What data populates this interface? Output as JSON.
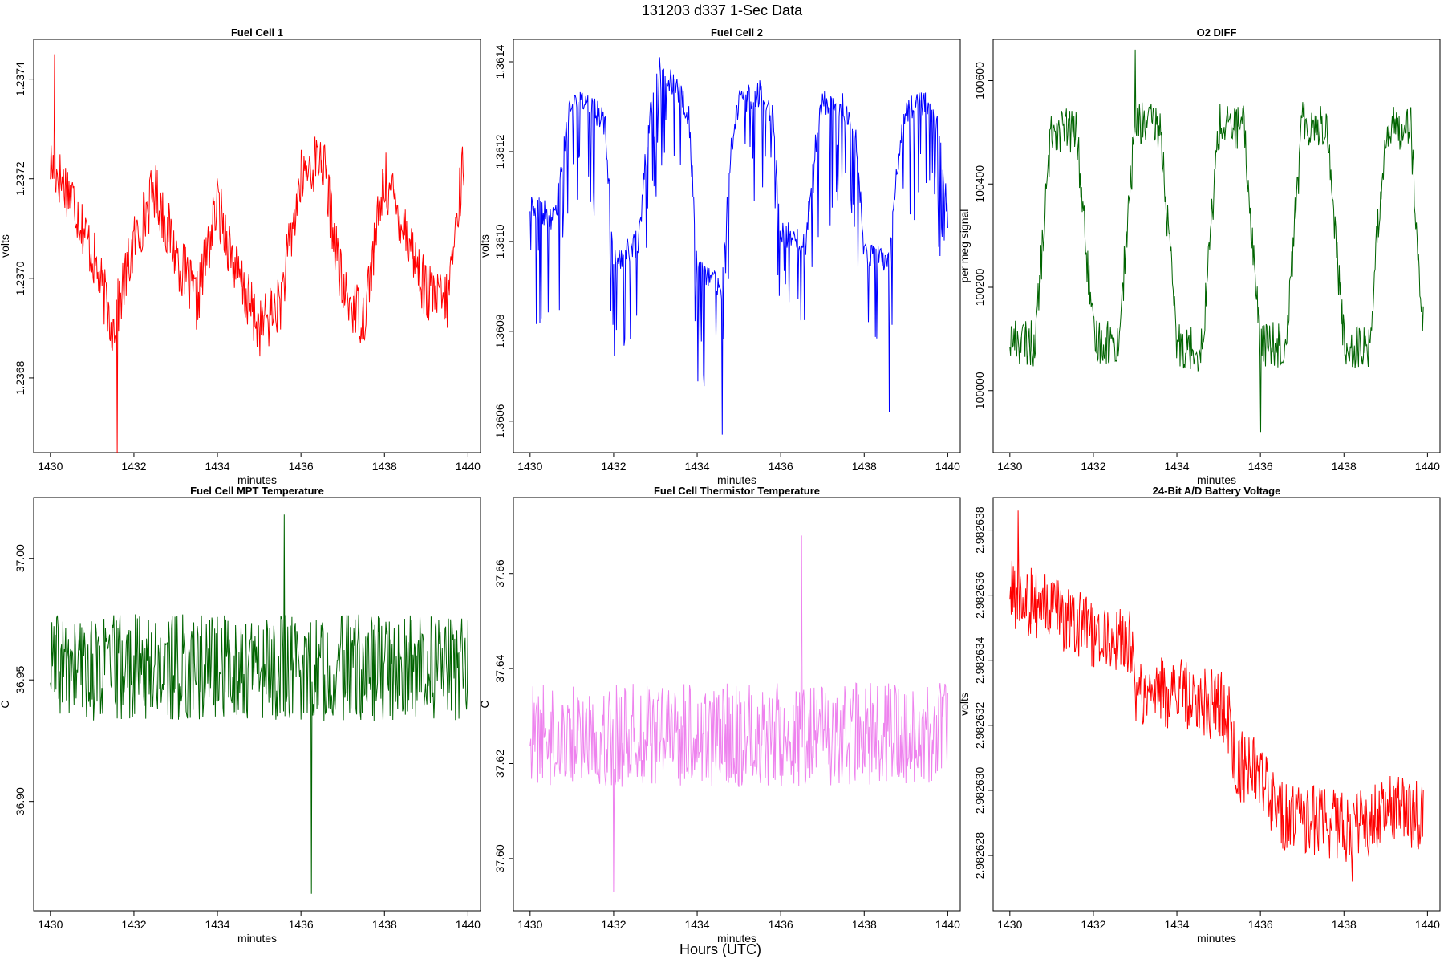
{
  "figure": {
    "title": "131203   d337   1-Sec Data",
    "xlabel": "Hours (UTC)"
  },
  "chart_data": [
    {
      "type": "line",
      "title": "Fuel Cell 1",
      "xlabel": "minutes",
      "ylabel": "volts",
      "color": "#ff0000",
      "xlim": [
        1429.6,
        1440.3
      ],
      "ylim": [
        1.23665,
        1.23748
      ],
      "xticks": [
        1430,
        1432,
        1434,
        1436,
        1438,
        1440
      ],
      "xtick_labels": [
        "1430",
        "1432",
        "1434",
        "1436",
        "1438",
        "1440"
      ],
      "yticks": [
        1.2368,
        1.237,
        1.2372,
        1.2374
      ],
      "ytick_labels": [
        "1.2368",
        "1.2370",
        "1.2372",
        "1.2374"
      ],
      "x": [
        1430.0,
        1430.5,
        1431.0,
        1431.5,
        1432.0,
        1432.5,
        1433.0,
        1433.5,
        1434.0,
        1434.5,
        1435.0,
        1435.5,
        1436.0,
        1436.5,
        1437.0,
        1437.5,
        1438.0,
        1438.5,
        1439.0,
        1439.5,
        1439.9
      ],
      "y": [
        1.23723,
        1.23717,
        1.23705,
        1.2369,
        1.23707,
        1.23718,
        1.23705,
        1.23695,
        1.23715,
        1.237,
        1.2369,
        1.23695,
        1.2372,
        1.23725,
        1.23697,
        1.23692,
        1.2372,
        1.2371,
        1.23697,
        1.23695,
        1.23724
      ],
      "noise": 6e-05,
      "minima": [
        [
          1431.6,
          1.23665
        ]
      ],
      "maxima": [
        [
          1430.1,
          1.23745
        ]
      ]
    },
    {
      "type": "line",
      "title": "Fuel Cell 2",
      "xlabel": "minutes",
      "ylabel": "volts",
      "color": "#0000ff",
      "xlim": [
        1429.6,
        1440.3
      ],
      "ylim": [
        1.36053,
        1.36145
      ],
      "xticks": [
        1430,
        1432,
        1434,
        1436,
        1438,
        1440
      ],
      "xtick_labels": [
        "1430",
        "1432",
        "1434",
        "1436",
        "1438",
        "1440"
      ],
      "yticks": [
        1.3606,
        1.3608,
        1.361,
        1.3612,
        1.3614
      ],
      "ytick_labels": [
        "1.3606",
        "1.3608",
        "1.3610",
        "1.3612",
        "1.3614"
      ],
      "x": [
        1430.0,
        1430.6,
        1430.8,
        1431.0,
        1431.5,
        1431.8,
        1432.0,
        1432.6,
        1432.8,
        1433.0,
        1433.5,
        1433.8,
        1434.0,
        1434.6,
        1434.8,
        1435.0,
        1435.5,
        1435.8,
        1436.0,
        1436.6,
        1436.8,
        1437.0,
        1437.5,
        1437.8,
        1438.0,
        1438.6,
        1438.8,
        1439.0,
        1439.5,
        1439.8,
        1440.0
      ],
      "y": [
        1.36108,
        1.36105,
        1.3612,
        1.36132,
        1.3613,
        1.36126,
        1.36095,
        1.361,
        1.36122,
        1.36137,
        1.36135,
        1.36128,
        1.36095,
        1.3609,
        1.3612,
        1.36131,
        1.36133,
        1.36128,
        1.36102,
        1.361,
        1.3612,
        1.36131,
        1.3613,
        1.36123,
        1.36098,
        1.36095,
        1.36118,
        1.36129,
        1.36131,
        1.36125,
        1.36105
      ],
      "noise": 3e-05,
      "dips": 0.00025,
      "minima": [
        [
          1434.6,
          1.36057
        ],
        [
          1438.6,
          1.36062
        ]
      ],
      "maxima": [
        [
          1433.1,
          1.36141
        ]
      ]
    },
    {
      "type": "line",
      "title": "O2 DIFF",
      "xlabel": "minutes",
      "ylabel": "per meg signal",
      "color": "#006400",
      "xlim": [
        1429.6,
        1440.3
      ],
      "ylim": [
        99880,
        100680
      ],
      "xticks": [
        1430,
        1432,
        1434,
        1436,
        1438,
        1440
      ],
      "xtick_labels": [
        "1430",
        "1432",
        "1434",
        "1436",
        "1438",
        "1440"
      ],
      "yticks": [
        100000,
        100200,
        100400,
        100600
      ],
      "ytick_labels": [
        "100000",
        "100200",
        "100400",
        "100600"
      ],
      "x": [
        1430.0,
        1430.6,
        1430.8,
        1431.0,
        1431.6,
        1431.8,
        1432.0,
        1432.6,
        1432.8,
        1433.0,
        1433.6,
        1433.8,
        1434.0,
        1434.6,
        1434.8,
        1435.0,
        1435.6,
        1435.8,
        1436.0,
        1436.6,
        1436.8,
        1437.0,
        1437.6,
        1437.8,
        1438.0,
        1438.6,
        1438.8,
        1439.0,
        1439.6,
        1439.8,
        1439.9
      ],
      "y": [
        100100,
        100090,
        100300,
        100510,
        100500,
        100300,
        100100,
        100090,
        100300,
        100520,
        100510,
        100300,
        100090,
        100080,
        100300,
        100510,
        100510,
        100300,
        100090,
        100090,
        100300,
        100520,
        100510,
        100300,
        100090,
        100080,
        100300,
        100500,
        100520,
        100200,
        100120
      ],
      "noise": 45,
      "minima": [
        [
          1436.0,
          99920
        ]
      ],
      "maxima": [
        [
          1433.0,
          100660
        ]
      ]
    },
    {
      "type": "line",
      "title": "Fuel Cell MPT Temperature",
      "xlabel": "minutes",
      "ylabel": "C",
      "color": "#006400",
      "xlim": [
        1429.6,
        1440.3
      ],
      "ylim": [
        36.855,
        37.025
      ],
      "xticks": [
        1430,
        1432,
        1434,
        1436,
        1438,
        1440
      ],
      "xtick_labels": [
        "1430",
        "1432",
        "1434",
        "1436",
        "1438",
        "1440"
      ],
      "yticks": [
        36.9,
        36.95,
        37.0
      ],
      "ytick_labels": [
        "36.90",
        "36.95",
        "37.00"
      ],
      "x": [
        1430.0,
        1440.0
      ],
      "y": [
        36.955,
        36.955
      ],
      "noise": 0.022,
      "minima": [
        [
          1436.25,
          36.862
        ]
      ],
      "maxima": [
        [
          1435.6,
          37.018
        ]
      ]
    },
    {
      "type": "line",
      "title": "Fuel Cell Thermistor Temperature",
      "xlabel": "minutes",
      "ylabel": "C",
      "color": "#ee82ee",
      "xlim": [
        1429.6,
        1440.3
      ],
      "ylim": [
        37.589,
        37.676
      ],
      "xticks": [
        1430,
        1432,
        1434,
        1436,
        1438,
        1440
      ],
      "xtick_labels": [
        "1430",
        "1432",
        "1434",
        "1436",
        "1438",
        "1440"
      ],
      "yticks": [
        37.6,
        37.62,
        37.64,
        37.66
      ],
      "ytick_labels": [
        "37.60",
        "37.62",
        "37.64",
        "37.66"
      ],
      "x": [
        1430.0,
        1440.0
      ],
      "y": [
        37.626,
        37.626
      ],
      "noise": 0.011,
      "minima": [
        [
          1432.0,
          37.593
        ]
      ],
      "maxima": [
        [
          1436.5,
          37.668
        ]
      ]
    },
    {
      "type": "line",
      "title": "24-Bit A/D Battery Voltage",
      "xlabel": "minutes",
      "ylabel": "volts",
      "color": "#ff0000",
      "xlim": [
        1429.6,
        1440.3
      ],
      "ylim": [
        2.9826263,
        2.982639
      ],
      "xticks": [
        1430,
        1432,
        1434,
        1436,
        1438,
        1440
      ],
      "xtick_labels": [
        "1430",
        "1432",
        "1434",
        "1436",
        "1438",
        "1440"
      ],
      "yticks": [
        2.982628,
        2.98263,
        2.982632,
        2.982634,
        2.982636,
        2.982638
      ],
      "ytick_labels": [
        "2.982628",
        "2.982630",
        "2.982632",
        "2.982634",
        "2.982636",
        "2.982638"
      ],
      "x": [
        1430.0,
        1431.0,
        1432.0,
        1432.9,
        1433.0,
        1434.0,
        1435.2,
        1435.4,
        1436.0,
        1436.5,
        1437.0,
        1438.0,
        1438.5,
        1439.0,
        1439.9
      ],
      "y": [
        2.982636,
        2.9826355,
        2.9826348,
        2.9826345,
        2.982633,
        2.982633,
        2.9826325,
        2.9826308,
        2.9826305,
        2.9826292,
        2.9826291,
        2.9826289,
        2.9826289,
        2.9826296,
        2.9826292
      ],
      "noise": 1.1e-06,
      "minima": [
        [
          1438.2,
          2.9826272
        ]
      ],
      "maxima": [
        [
          1430.2,
          2.9826386
        ]
      ]
    }
  ]
}
